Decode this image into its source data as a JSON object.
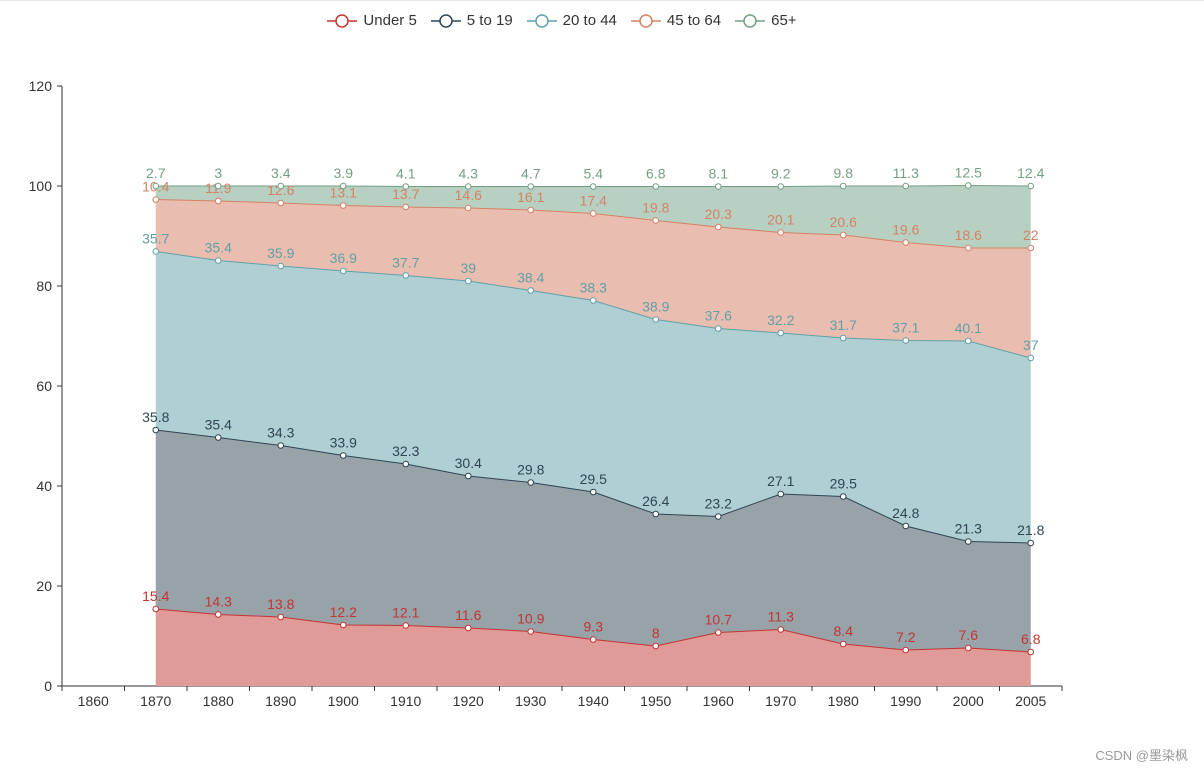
{
  "chart_data": {
    "type": "area",
    "stacked": true,
    "categories": [
      "1860",
      "1870",
      "1880",
      "1890",
      "1900",
      "1910",
      "1920",
      "1930",
      "1940",
      "1950",
      "1960",
      "1970",
      "1980",
      "1990",
      "2000",
      "2005"
    ],
    "ylim": [
      0,
      120
    ],
    "yticks": [
      0,
      20,
      40,
      60,
      80,
      100,
      120
    ],
    "legend_position": "top-center",
    "series": [
      {
        "name": "Under 5",
        "color": "#c23531",
        "fill": "#e09a98",
        "values": [
          null,
          15.4,
          14.3,
          13.8,
          12.2,
          12.1,
          11.6,
          10.9,
          9.3,
          8,
          10.7,
          11.3,
          8.4,
          7.2,
          7.6,
          6.8
        ],
        "cumulative": [
          null,
          15.4,
          14.3,
          13.8,
          12.2,
          12.1,
          11.6,
          10.9,
          9.3,
          8,
          10.7,
          11.3,
          8.4,
          7.2,
          7.6,
          6.8
        ]
      },
      {
        "name": "5 to 19",
        "color": "#2f4554",
        "fill": "#97a2a9",
        "values": [
          null,
          35.8,
          35.4,
          34.3,
          33.9,
          32.3,
          30.4,
          29.8,
          29.5,
          26.4,
          23.2,
          27.1,
          29.5,
          24.8,
          21.3,
          21.8
        ],
        "cumulative": [
          null,
          51.2,
          49.7,
          48.1,
          46.1,
          44.4,
          42,
          40.7,
          38.8,
          34.4,
          33.9,
          38.4,
          37.9,
          32,
          28.9,
          28.6
        ]
      },
      {
        "name": "20 to 44",
        "color": "#61a0a8",
        "fill": "#b0cfd3",
        "values": [
          null,
          35.7,
          35.4,
          35.9,
          36.9,
          37.7,
          39,
          38.4,
          38.3,
          38.9,
          37.6,
          32.2,
          31.7,
          37.1,
          40.1,
          37
        ],
        "cumulative": [
          null,
          86.9,
          85.1,
          84,
          83,
          82.1,
          81,
          79.1,
          77.1,
          73.3,
          71.5,
          70.6,
          69.6,
          69.1,
          69,
          65.6
        ]
      },
      {
        "name": "45 to 64",
        "color": "#d48265",
        "fill": "#e9bdb0",
        "values": [
          null,
          10.4,
          11.9,
          12.6,
          13.1,
          13.7,
          14.6,
          16.1,
          17.4,
          19.8,
          20.3,
          20.1,
          20.6,
          19.6,
          18.6,
          22
        ],
        "cumulative": [
          null,
          97.3,
          97,
          96.6,
          96.1,
          95.8,
          95.6,
          95.2,
          94.5,
          93.1,
          91.8,
          90.7,
          90.2,
          88.7,
          87.6,
          87.6
        ]
      },
      {
        "name": "65+",
        "color": "#749f83",
        "fill": "#b8d0c1",
        "values": [
          null,
          2.7,
          3,
          3.4,
          3.9,
          4.1,
          4.3,
          4.7,
          5.4,
          6.8,
          8.1,
          9.2,
          9.8,
          11.3,
          12.5,
          12.4
        ],
        "cumulative": [
          null,
          100,
          100,
          100,
          100,
          99.9,
          99.9,
          99.9,
          99.9,
          99.9,
          99.9,
          99.9,
          100,
          100,
          100.1,
          100
        ]
      }
    ]
  },
  "watermark": "CSDN @墨染枫"
}
